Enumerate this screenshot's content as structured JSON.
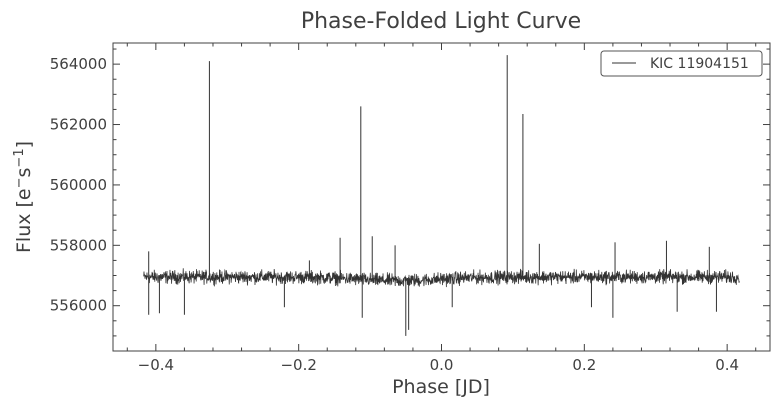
{
  "chart_data": {
    "type": "line",
    "title": "Phase-Folded Light Curve",
    "xlabel": "Phase [JD]",
    "ylabel_main": "Flux [e",
    "ylabel_sup1": "−",
    "ylabel_mid": "s",
    "ylabel_sup2": "−1",
    "ylabel_end": "]",
    "xlim": [
      -0.46,
      0.46
    ],
    "ylim": [
      554500,
      564700
    ],
    "xticks": [
      -0.4,
      -0.2,
      0.0,
      0.2,
      0.4
    ],
    "xtick_labels": [
      "−0.4",
      "−0.2",
      "0.0",
      "0.2",
      "0.4"
    ],
    "yticks": [
      556000,
      558000,
      560000,
      562000,
      564000
    ],
    "ytick_labels": [
      "556000",
      "558000",
      "560000",
      "562000",
      "564000"
    ],
    "grid": false,
    "legend_position": "top-right",
    "series": [
      {
        "name": "KIC 11904151",
        "color": "#333333",
        "baseline_flux": 556950,
        "noise_amplitude": 250,
        "x_range": [
          -0.417,
          0.417
        ],
        "spikes": [
          {
            "x": -0.325,
            "y": 564100
          },
          {
            "x": -0.113,
            "y": 562600
          },
          {
            "x": -0.142,
            "y": 558250
          },
          {
            "x": -0.097,
            "y": 558300
          },
          {
            "x": -0.185,
            "y": 557500
          },
          {
            "x": -0.065,
            "y": 558000
          },
          {
            "x": 0.092,
            "y": 564300
          },
          {
            "x": 0.114,
            "y": 562350
          },
          {
            "x": 0.137,
            "y": 558050
          },
          {
            "x": 0.243,
            "y": 558100
          },
          {
            "x": 0.315,
            "y": 558150
          },
          {
            "x": 0.375,
            "y": 557950
          },
          {
            "x": -0.41,
            "y": 557800
          }
        ],
        "dips": [
          {
            "x": -0.05,
            "y": 555000
          },
          {
            "x": -0.046,
            "y": 555200
          },
          {
            "x": -0.111,
            "y": 555600
          },
          {
            "x": -0.41,
            "y": 555700
          },
          {
            "x": -0.395,
            "y": 555750
          },
          {
            "x": -0.36,
            "y": 555700
          },
          {
            "x": 0.24,
            "y": 555600
          },
          {
            "x": 0.21,
            "y": 555950
          },
          {
            "x": 0.33,
            "y": 555800
          },
          {
            "x": 0.385,
            "y": 555800
          },
          {
            "x": 0.015,
            "y": 555950
          },
          {
            "x": -0.22,
            "y": 555950
          }
        ]
      }
    ]
  }
}
